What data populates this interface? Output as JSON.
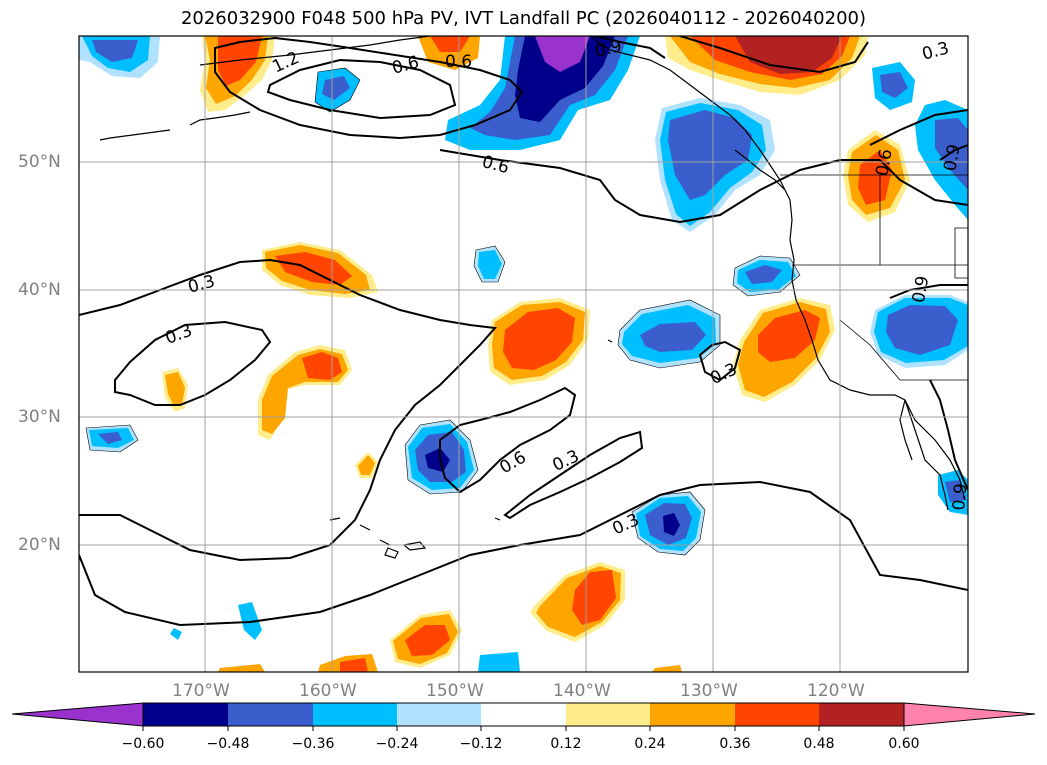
{
  "title": "2026032900 F048 500 hPa PV, IVT Landfall PC (2026040112 - 2026040200)",
  "lat_labels": [
    "50°N",
    "40°N",
    "30°N",
    "20°N"
  ],
  "lon_labels": [
    "170°W",
    "160°W",
    "150°W",
    "140°W",
    "130°W",
    "120°W"
  ],
  "contour_labels": [
    "1.2",
    "0.6",
    "0.6",
    "0.9",
    "0.6",
    "0.6",
    "0.9",
    "0.3",
    "0.3",
    "0.3",
    "0.6",
    "0.3",
    "0.3",
    "0.9",
    "0.3",
    "0.9"
  ],
  "colorbar": {
    "colors": [
      "#9a32cd",
      "#00008b",
      "#3a5fcd",
      "#00bfff",
      "#b0e2ff",
      "#ffffff",
      "#ffec8b",
      "#ffa500",
      "#ff4500",
      "#b22222",
      "#ff82ab"
    ],
    "tick_labels": [
      "−0.60",
      "−0.48",
      "−0.36",
      "−0.24",
      "−0.12",
      "0.12",
      "0.24",
      "0.36",
      "0.48",
      "0.60"
    ]
  }
}
